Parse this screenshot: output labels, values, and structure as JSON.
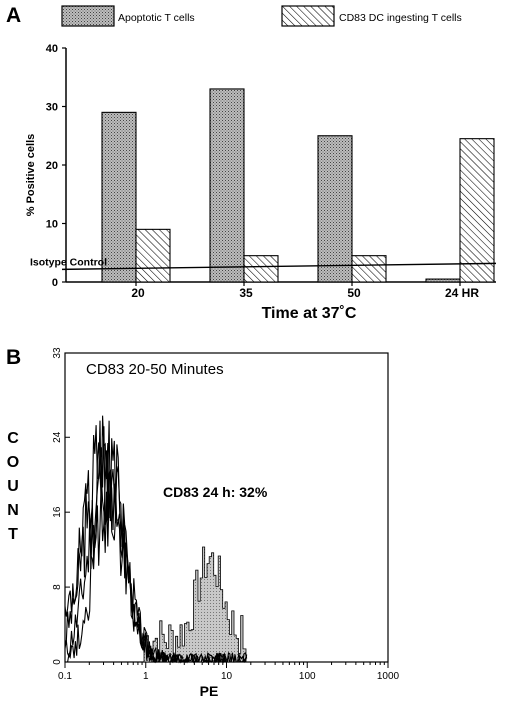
{
  "chart_data": [
    {
      "panel_label": "A",
      "type": "bar",
      "legend": [
        {
          "name": "Apoptotic T cells",
          "pattern": "stipple"
        },
        {
          "name": "CD83 DC ingesting T cells",
          "pattern": "hatch"
        }
      ],
      "ylabel": "% Positive cells",
      "xlabel": "Time at 37˚C",
      "ylim": [
        0,
        40
      ],
      "yticks": [
        "0",
        "10",
        "20",
        "30",
        "40"
      ],
      "categories": [
        "20",
        "35",
        "50",
        "24 HR"
      ],
      "series": [
        {
          "name": "Apoptotic T cells",
          "values": [
            29,
            33,
            25,
            0.5
          ]
        },
        {
          "name": "CD83 DC ingesting T cells",
          "values": [
            9,
            4.5,
            4.5,
            24.5
          ]
        }
      ],
      "reference_line": {
        "label": "Isotype Control",
        "value": 2.5
      }
    },
    {
      "panel_label": "B",
      "type": "line",
      "title": "CD83 20-50 Minutes",
      "annotation": "CD83 24 h: 32%",
      "xlabel": "PE",
      "ylabel": "COUNT",
      "x_scale": "log",
      "xlim": [
        0.1,
        1000
      ],
      "xticks": [
        "0.1",
        "1",
        "10",
        "100",
        "1000"
      ],
      "ylim": [
        0,
        33
      ],
      "yticks": [
        "0",
        "8",
        "16",
        "24",
        "33"
      ]
    }
  ]
}
